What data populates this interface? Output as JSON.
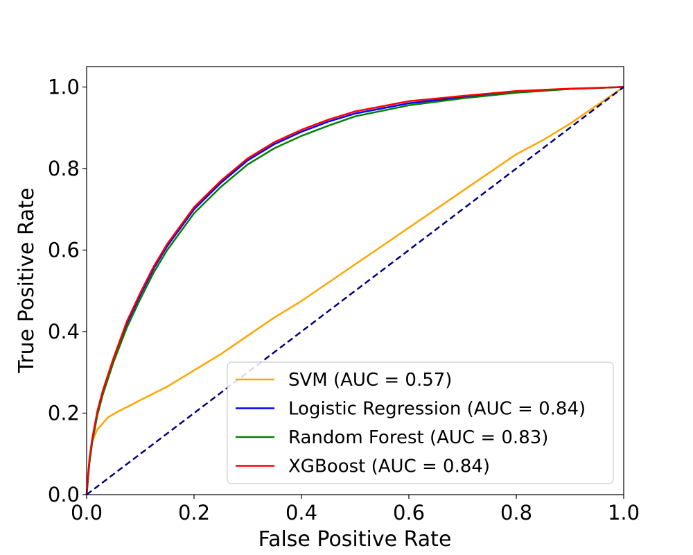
{
  "chart_data": {
    "type": "line",
    "title": "",
    "xlabel": "False Positive Rate",
    "ylabel": "True Positive Rate",
    "xlim": [
      0.0,
      1.0
    ],
    "ylim": [
      0.0,
      1.05
    ],
    "xticks": [
      "0.0",
      "0.2",
      "0.4",
      "0.6",
      "0.8",
      "1.0"
    ],
    "yticks": [
      "0.0",
      "0.2",
      "0.4",
      "0.6",
      "0.8",
      "1.0"
    ],
    "grid": false,
    "legend_position": "lower-right",
    "reference_line": {
      "style": "dashed",
      "color": "#000080",
      "x": [
        0.0,
        1.0
      ],
      "y": [
        0.0,
        1.0
      ]
    },
    "series": [
      {
        "name": "SVM (AUC = 0.57)",
        "color": "#FFA500",
        "x": [
          0.0,
          0.005,
          0.01,
          0.02,
          0.03,
          0.04,
          0.06,
          0.08,
          0.1,
          0.15,
          0.2,
          0.25,
          0.3,
          0.35,
          0.4,
          0.45,
          0.5,
          0.55,
          0.6,
          0.65,
          0.7,
          0.75,
          0.8,
          0.85,
          0.9,
          0.95,
          1.0
        ],
        "y": [
          0.0,
          0.08,
          0.13,
          0.16,
          0.175,
          0.19,
          0.205,
          0.218,
          0.232,
          0.265,
          0.305,
          0.345,
          0.39,
          0.435,
          0.475,
          0.52,
          0.565,
          0.61,
          0.655,
          0.7,
          0.745,
          0.79,
          0.835,
          0.87,
          0.91,
          0.955,
          1.0
        ]
      },
      {
        "name": "Logistic Regression (AUC = 0.84)",
        "color": "#0000FF",
        "x": [
          0.0,
          0.005,
          0.01,
          0.02,
          0.03,
          0.05,
          0.075,
          0.1,
          0.125,
          0.15,
          0.2,
          0.25,
          0.3,
          0.35,
          0.4,
          0.45,
          0.5,
          0.6,
          0.7,
          0.8,
          0.9,
          1.0
        ],
        "y": [
          0.0,
          0.08,
          0.13,
          0.2,
          0.25,
          0.33,
          0.42,
          0.49,
          0.555,
          0.61,
          0.7,
          0.765,
          0.82,
          0.86,
          0.89,
          0.915,
          0.935,
          0.96,
          0.975,
          0.988,
          0.995,
          1.0
        ]
      },
      {
        "name": "Random Forest (AUC = 0.83)",
        "color": "#008000",
        "x": [
          0.0,
          0.005,
          0.01,
          0.02,
          0.03,
          0.05,
          0.075,
          0.1,
          0.125,
          0.15,
          0.2,
          0.25,
          0.3,
          0.35,
          0.4,
          0.45,
          0.5,
          0.6,
          0.7,
          0.8,
          0.9,
          1.0
        ],
        "y": [
          0.0,
          0.075,
          0.125,
          0.195,
          0.245,
          0.325,
          0.41,
          0.48,
          0.545,
          0.6,
          0.69,
          0.755,
          0.81,
          0.85,
          0.88,
          0.905,
          0.928,
          0.955,
          0.972,
          0.986,
          0.995,
          1.0
        ]
      },
      {
        "name": "XGBoost (AUC = 0.84)",
        "color": "#FF0000",
        "x": [
          0.0,
          0.005,
          0.01,
          0.02,
          0.03,
          0.05,
          0.075,
          0.1,
          0.125,
          0.15,
          0.2,
          0.25,
          0.3,
          0.35,
          0.4,
          0.45,
          0.5,
          0.6,
          0.7,
          0.8,
          0.9,
          1.0
        ],
        "y": [
          0.0,
          0.085,
          0.135,
          0.205,
          0.255,
          0.335,
          0.425,
          0.495,
          0.56,
          0.615,
          0.705,
          0.77,
          0.825,
          0.865,
          0.895,
          0.92,
          0.94,
          0.965,
          0.978,
          0.99,
          0.996,
          1.0
        ]
      }
    ]
  }
}
